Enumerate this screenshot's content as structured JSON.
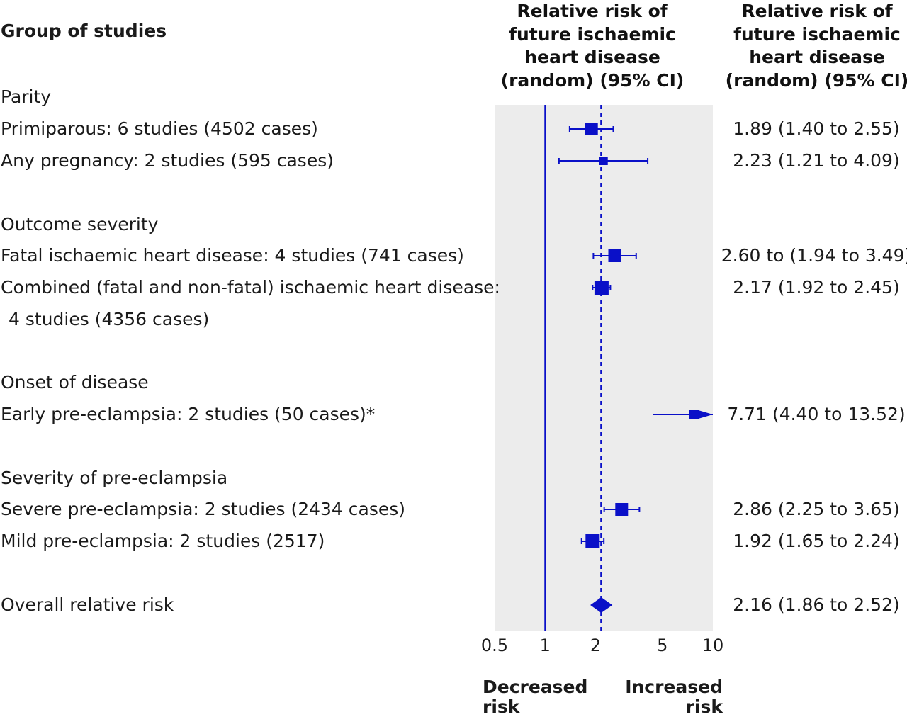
{
  "header": {
    "group_label": "Group of studies",
    "plot_label": "Relative risk of future ischaemic heart disease (random) (95% CI)",
    "estimate_label": "Relative risk of future ischaemic heart disease (random) (95% CI)"
  },
  "rows": [
    {
      "kind": "section",
      "label": "Parity"
    },
    {
      "kind": "study",
      "label": "Primiparous: 6 studies (4502 cases)",
      "estimate_text": "1.89 (1.40 to 2.55)"
    },
    {
      "kind": "study",
      "label": "Any pregnancy: 2 studies (595 cases)",
      "estimate_text": "2.23 (1.21 to 4.09)"
    },
    {
      "kind": "section",
      "label": "Outcome severity"
    },
    {
      "kind": "study",
      "label": "Fatal ischaemic heart disease: 4 studies (741 cases)",
      "estimate_text": "2.60 to (1.94 to 3.49)"
    },
    {
      "kind": "study",
      "label": "Combined (fatal and non-fatal) ischaemic heart disease:",
      "estimate_text": "2.17 (1.92 to 2.45)"
    },
    {
      "kind": "continuation",
      "label": "4 studies (4356 cases)"
    },
    {
      "kind": "section",
      "label": "Onset of disease"
    },
    {
      "kind": "study",
      "label": "Early pre-eclampsia: 2 studies (50 cases)*",
      "estimate_text": "7.71 (4.40 to 13.52)"
    },
    {
      "kind": "section",
      "label": "Severity of pre-eclampsia"
    },
    {
      "kind": "study",
      "label": "Severe pre-eclampsia: 2 studies (2434 cases)",
      "estimate_text": "2.86 (2.25 to 3.65)"
    },
    {
      "kind": "study",
      "label": "Mild pre-eclampsia: 2 studies (2517)",
      "estimate_text": "1.92 (1.65 to 2.24)"
    },
    {
      "kind": "overall",
      "label": "Overall relative risk",
      "estimate_text": "2.16 (1.86 to 2.52)"
    }
  ],
  "direction_labels": {
    "left": "Decreased risk",
    "right": "Increased risk"
  },
  "colors": {
    "marker": "#0a10c8",
    "plot_background": "#ececec",
    "text": "#1a1a1a"
  },
  "chart_data": {
    "type": "forest",
    "x_scale": "log",
    "xlim": [
      0.5,
      10
    ],
    "x_ticks": [
      0.5,
      1,
      2,
      5,
      10
    ],
    "x_tick_labels": [
      "0.5",
      "1",
      "2",
      "5",
      "10"
    ],
    "null_line": 1,
    "pooled_line": 2.16,
    "points": [
      {
        "label": "Primiparous: 6 studies (4502 cases)",
        "rr": 1.89,
        "lo": 1.4,
        "hi": 2.55
      },
      {
        "label": "Any pregnancy: 2 studies (595 cases)",
        "rr": 2.23,
        "lo": 1.21,
        "hi": 4.09
      },
      {
        "label": "Fatal ischaemic heart disease: 4 studies (741 cases)",
        "rr": 2.6,
        "lo": 1.94,
        "hi": 3.49
      },
      {
        "label": "Combined (fatal and non-fatal) ischaemic heart disease: 4 studies (4356 cases)",
        "rr": 2.17,
        "lo": 1.92,
        "hi": 2.45
      },
      {
        "label": "Early pre-eclampsia: 2 studies (50 cases)*",
        "rr": 7.71,
        "lo": 4.4,
        "hi": 13.52,
        "truncated_right": true
      },
      {
        "label": "Severe pre-eclampsia: 2 studies (2434 cases)",
        "rr": 2.86,
        "lo": 2.25,
        "hi": 3.65
      },
      {
        "label": "Mild pre-eclampsia: 2 studies (2517)",
        "rr": 1.92,
        "lo": 1.65,
        "hi": 2.24
      },
      {
        "label": "Overall relative risk",
        "rr": 2.16,
        "lo": 1.86,
        "hi": 2.52,
        "overall": true
      }
    ]
  }
}
